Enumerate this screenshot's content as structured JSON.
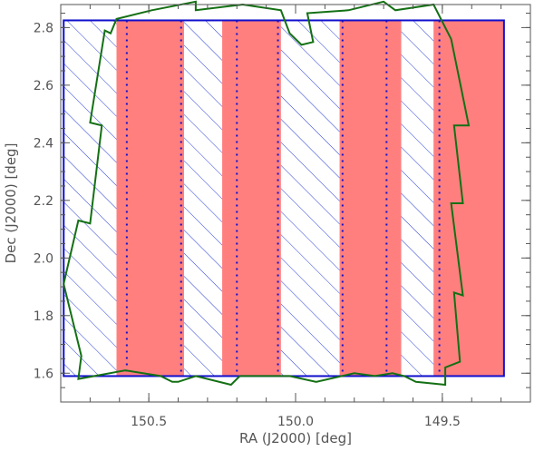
{
  "colors": {
    "frame": "#555555",
    "stripe_fill": "#ff7f7f",
    "survey_outline": "#1010cc",
    "hatch": "#2a3fd6",
    "tile_outline": "#147014",
    "tick_text": "#555555"
  },
  "chart_data": {
    "type": "region_map",
    "xlabel": "RA (J2000) [deg]",
    "ylabel": "Dec (J2000) [deg]",
    "xlim": [
      150.8,
      149.2
    ],
    "ylim": [
      1.5,
      2.88
    ],
    "x_reversed": true,
    "grid": false,
    "xticks": [
      {
        "value": 150.5,
        "label": "150.5"
      },
      {
        "value": 150.0,
        "label": "150.0"
      },
      {
        "value": 149.5,
        "label": "149.5"
      }
    ],
    "yticks": [
      {
        "value": 1.6,
        "label": "1.6"
      },
      {
        "value": 1.8,
        "label": "1.8"
      },
      {
        "value": 2.0,
        "label": "2.0"
      },
      {
        "value": 2.2,
        "label": "2.2"
      },
      {
        "value": 2.4,
        "label": "2.4"
      },
      {
        "value": 2.6,
        "label": "2.6"
      },
      {
        "value": 2.8,
        "label": "2.8"
      }
    ],
    "survey_rectangle": {
      "ra": [
        150.79,
        149.29
      ],
      "dec": [
        1.59,
        2.825
      ]
    },
    "filled_stripes": [
      {
        "ra": [
          150.61,
          150.38
        ]
      },
      {
        "ra": [
          150.25,
          150.05
        ]
      },
      {
        "ra": [
          149.85,
          149.64
        ]
      },
      {
        "ra": [
          149.53,
          149.29
        ]
      }
    ],
    "hatched_stripes": [
      {
        "ra": [
          150.79,
          150.61
        ]
      },
      {
        "ra": [
          150.38,
          150.25
        ]
      },
      {
        "ra": [
          150.05,
          149.85
        ]
      },
      {
        "ra": [
          149.64,
          149.53
        ]
      }
    ],
    "dotted_lines_ra": [
      150.575,
      150.39,
      150.2,
      150.06,
      149.84,
      149.69,
      149.51
    ],
    "tile_outline": [
      [
        150.79,
        1.91
      ],
      [
        150.74,
        2.13
      ],
      [
        150.7,
        2.12
      ],
      [
        150.66,
        2.46
      ],
      [
        150.7,
        2.47
      ],
      [
        150.65,
        2.79
      ],
      [
        150.63,
        2.78
      ],
      [
        150.61,
        2.83
      ],
      [
        150.49,
        2.86
      ],
      [
        150.34,
        2.89
      ],
      [
        150.34,
        2.86
      ],
      [
        150.18,
        2.88
      ],
      [
        150.05,
        2.86
      ],
      [
        150.02,
        2.78
      ],
      [
        149.98,
        2.74
      ],
      [
        149.94,
        2.75
      ],
      [
        149.96,
        2.85
      ],
      [
        149.82,
        2.86
      ],
      [
        149.7,
        2.89
      ],
      [
        149.66,
        2.86
      ],
      [
        149.53,
        2.88
      ],
      [
        149.47,
        2.76
      ],
      [
        149.41,
        2.46
      ],
      [
        149.46,
        2.46
      ],
      [
        149.43,
        2.19
      ],
      [
        149.47,
        2.19
      ],
      [
        149.43,
        1.87
      ],
      [
        149.46,
        1.88
      ],
      [
        149.44,
        1.64
      ],
      [
        149.49,
        1.62
      ],
      [
        149.49,
        1.56
      ],
      [
        149.59,
        1.57
      ],
      [
        149.63,
        1.59
      ],
      [
        149.67,
        1.6
      ],
      [
        149.73,
        1.59
      ],
      [
        149.8,
        1.6
      ],
      [
        149.93,
        1.57
      ],
      [
        150.02,
        1.59
      ],
      [
        150.19,
        1.59
      ],
      [
        150.22,
        1.56
      ],
      [
        150.34,
        1.59
      ],
      [
        150.4,
        1.57
      ],
      [
        150.42,
        1.57
      ],
      [
        150.46,
        1.59
      ],
      [
        150.58,
        1.61
      ],
      [
        150.74,
        1.58
      ],
      [
        150.73,
        1.66
      ],
      [
        150.79,
        1.91
      ]
    ]
  }
}
